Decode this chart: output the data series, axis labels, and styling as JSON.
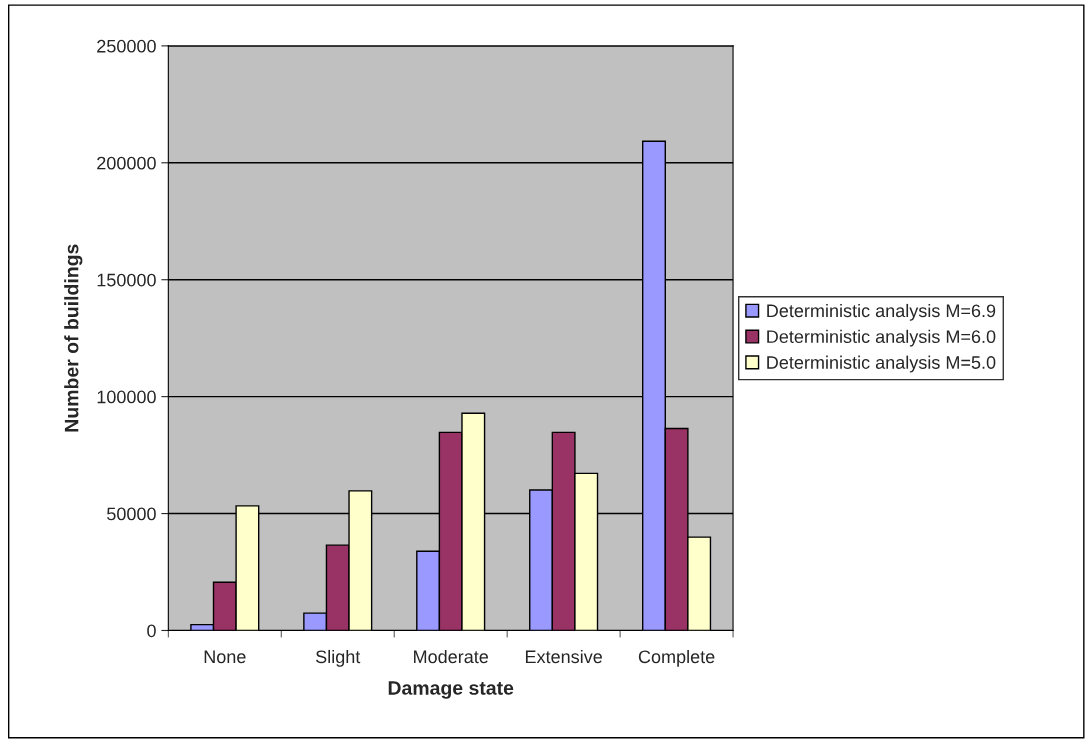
{
  "chart_data": {
    "type": "bar",
    "xlabel": "Damage state",
    "ylabel": "Number of buildings",
    "categories": [
      "None",
      "Slight",
      "Moderate",
      "Extensive",
      "Complete"
    ],
    "series": [
      {
        "name": "Deterministic analysis M=6.9",
        "color": "#9999ff",
        "values": [
          2500,
          7400,
          33900,
          60100,
          209200
        ]
      },
      {
        "name": "Deterministic analysis M=6.0",
        "color": "#993366",
        "values": [
          20600,
          36500,
          84700,
          84700,
          86400
        ]
      },
      {
        "name": "Deterministic analysis M=5.0",
        "color": "#ffffcc",
        "values": [
          53300,
          59700,
          92900,
          67200,
          39900
        ]
      }
    ],
    "ylim": [
      0,
      250000
    ],
    "yticks": [
      0,
      50000,
      100000,
      150000,
      200000,
      250000
    ],
    "grid": "y",
    "legend": "right"
  }
}
